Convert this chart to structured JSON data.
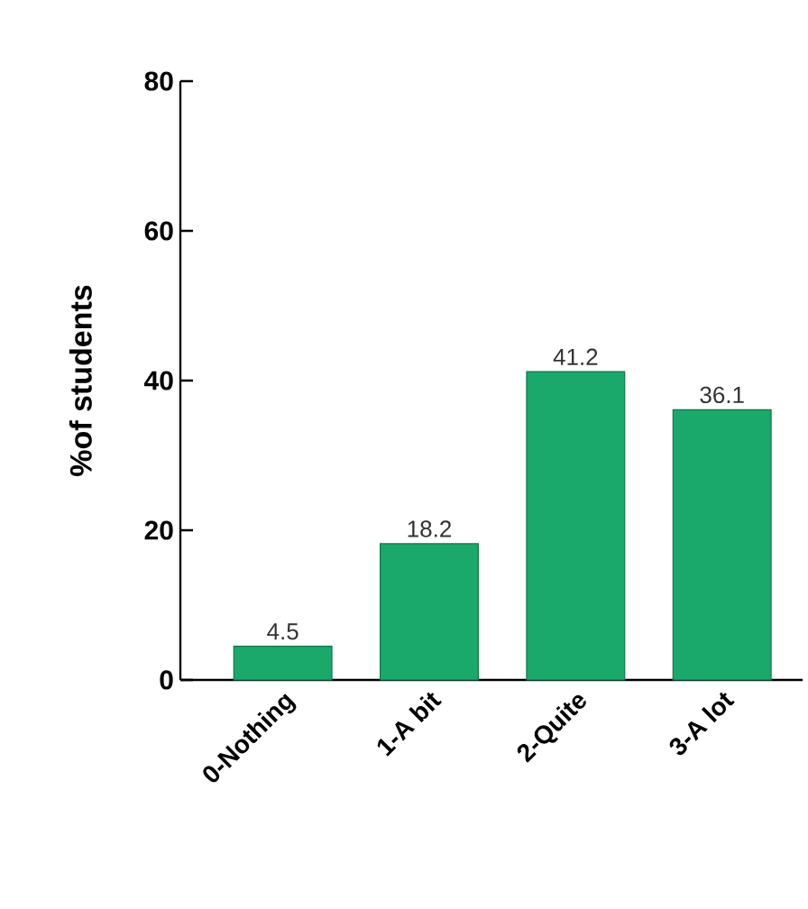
{
  "chart_data": {
    "type": "bar",
    "ylabel": "%of students",
    "categories": [
      "0-Nothing",
      "1-A bit",
      "2-Quite",
      "3-A lot"
    ],
    "values": [
      4.5,
      18.2,
      41.2,
      36.1
    ],
    "color": "#1aa86b",
    "ylim": [
      0,
      80
    ],
    "yticks": [
      0,
      20,
      40,
      60,
      80
    ],
    "data_labels": true
  }
}
